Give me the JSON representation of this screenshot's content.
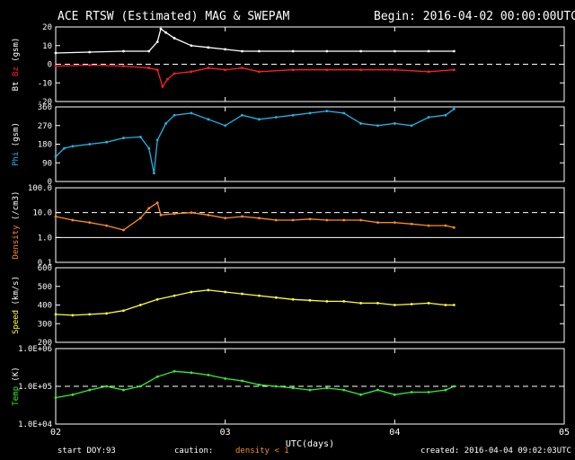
{
  "header": {
    "title": "ACE RTSW (Estimated) MAG & SWEPAM",
    "begin": "Begin: 2016-04-02 00:00:00UTC"
  },
  "footer": {
    "start_doy_label": "start DOY:",
    "start_doy_value": "93",
    "caution_label": "caution:",
    "caution_value": "density < 1",
    "created": "created: 2016-04-04 09:02:03UTC"
  },
  "colors": {
    "bt": "#ffffff",
    "bz": "#ff2020",
    "phi": "#22b4e6",
    "density": "#ff8c1a",
    "speed": "#ffff33",
    "temp": "#33ee33",
    "axis": "#ffffff",
    "background": "#000000"
  },
  "chart_data": {
    "type": "scatter",
    "xlabel": "UTC(days)",
    "xticks": [
      "02",
      "03",
      "04",
      "05"
    ],
    "xlim": [
      2,
      5
    ],
    "panels": [
      {
        "id": "mag",
        "ylabel_parts": [
          "Bt",
          "Bz",
          "(gsm)"
        ],
        "ylim": [
          -20,
          20
        ],
        "yticks": [
          "20",
          "10",
          "0",
          "-10",
          "-20"
        ],
        "ytick_values": [
          20,
          10,
          0,
          -10,
          -20
        ],
        "dashed_at": 0,
        "series": [
          {
            "name": "Bt",
            "color_key": "bt",
            "x": [
              2.0,
              2.2,
              2.4,
              2.55,
              2.6,
              2.62,
              2.65,
              2.7,
              2.8,
              2.9,
              3.0,
              3.1,
              3.2,
              3.4,
              3.6,
              3.8,
              4.0,
              4.2,
              4.35
            ],
            "y": [
              6,
              6.5,
              7,
              7,
              12,
              19,
              17,
              14,
              10,
              9,
              8,
              7,
              7,
              7,
              7,
              7,
              7,
              7,
              7
            ]
          },
          {
            "name": "Bz",
            "color_key": "bz",
            "x": [
              2.0,
              2.2,
              2.4,
              2.55,
              2.6,
              2.63,
              2.66,
              2.7,
              2.8,
              2.9,
              3.0,
              3.1,
              3.2,
              3.4,
              3.6,
              3.8,
              4.0,
              4.2,
              4.35
            ],
            "y": [
              -1,
              -0.5,
              -1,
              -2,
              -3,
              -12,
              -8,
              -5,
              -4,
              -2,
              -3,
              -2,
              -4,
              -3,
              -3,
              -3,
              -3,
              -4,
              -3
            ]
          }
        ]
      },
      {
        "id": "phi",
        "ylabel_parts": [
          "Phi",
          "(gsm)"
        ],
        "ylim": [
          0,
          360
        ],
        "yticks": [
          "360",
          "270",
          "180",
          "90",
          "0"
        ],
        "ytick_values": [
          360,
          270,
          180,
          90,
          0
        ],
        "series": [
          {
            "name": "Phi",
            "color_key": "phi",
            "x": [
              2.0,
              2.05,
              2.1,
              2.2,
              2.3,
              2.4,
              2.5,
              2.55,
              2.58,
              2.6,
              2.65,
              2.7,
              2.8,
              2.9,
              3.0,
              3.1,
              3.2,
              3.3,
              3.4,
              3.5,
              3.6,
              3.7,
              3.8,
              3.9,
              4.0,
              4.1,
              4.2,
              4.3,
              4.35
            ],
            "y": [
              120,
              160,
              170,
              180,
              190,
              210,
              215,
              160,
              40,
              200,
              280,
              320,
              330,
              300,
              270,
              320,
              300,
              310,
              320,
              330,
              340,
              330,
              280,
              270,
              280,
              270,
              310,
              320,
              350
            ]
          }
        ]
      },
      {
        "id": "density",
        "ylabel_parts": [
          "Density",
          "(/cm3)"
        ],
        "ylim": [
          0.1,
          100
        ],
        "log": true,
        "yticks": [
          "100.0",
          "10.0",
          "1.0",
          "0.1"
        ],
        "ytick_values": [
          100,
          10,
          1,
          0.1
        ],
        "dashed_at": 10,
        "solid_at": 1,
        "series": [
          {
            "name": "Density",
            "color_key": "density",
            "x": [
              2.0,
              2.1,
              2.2,
              2.3,
              2.4,
              2.5,
              2.55,
              2.6,
              2.62,
              2.7,
              2.8,
              2.9,
              3.0,
              3.1,
              3.2,
              3.3,
              3.4,
              3.5,
              3.6,
              3.7,
              3.8,
              3.9,
              4.0,
              4.1,
              4.2,
              4.3,
              4.35
            ],
            "y": [
              7,
              5,
              4,
              3,
              2,
              6,
              15,
              25,
              8,
              9,
              10,
              8,
              6,
              7,
              6,
              5,
              5,
              5.5,
              5,
              5,
              5,
              4,
              4,
              3.5,
              3,
              3,
              2.5
            ]
          }
        ]
      },
      {
        "id": "speed",
        "ylabel_parts": [
          "Speed",
          "(km/s)"
        ],
        "ylim": [
          200,
          600
        ],
        "yticks": [
          "600",
          "500",
          "400",
          "300",
          "200"
        ],
        "ytick_values": [
          600,
          500,
          400,
          300,
          200
        ],
        "series": [
          {
            "name": "Speed",
            "color_key": "speed",
            "x": [
              2.0,
              2.1,
              2.2,
              2.3,
              2.4,
              2.5,
              2.6,
              2.7,
              2.8,
              2.9,
              3.0,
              3.1,
              3.2,
              3.3,
              3.4,
              3.5,
              3.6,
              3.7,
              3.8,
              3.9,
              4.0,
              4.1,
              4.2,
              4.3,
              4.35
            ],
            "y": [
              350,
              345,
              350,
              355,
              370,
              400,
              430,
              450,
              470,
              480,
              470,
              460,
              450,
              440,
              430,
              425,
              420,
              420,
              410,
              410,
              400,
              405,
              410,
              400,
              400
            ]
          }
        ]
      },
      {
        "id": "temp",
        "ylabel_parts": [
          "Temp",
          "(K)"
        ],
        "ylim": [
          10000,
          1000000
        ],
        "log": true,
        "yticks": [
          "1.0E+06",
          "1.0E+05",
          "1.0E+04"
        ],
        "ytick_values": [
          1000000,
          100000,
          10000
        ],
        "dashed_at": 100000,
        "series": [
          {
            "name": "Temp",
            "color_key": "temp",
            "x": [
              2.0,
              2.1,
              2.2,
              2.3,
              2.4,
              2.5,
              2.6,
              2.7,
              2.8,
              2.9,
              3.0,
              3.1,
              3.2,
              3.3,
              3.4,
              3.5,
              3.6,
              3.7,
              3.8,
              3.9,
              4.0,
              4.1,
              4.2,
              4.3,
              4.35
            ],
            "y": [
              50000,
              60000,
              80000,
              100000,
              80000,
              100000,
              180000,
              250000,
              230000,
              200000,
              160000,
              140000,
              110000,
              100000,
              90000,
              80000,
              90000,
              80000,
              60000,
              80000,
              60000,
              70000,
              70000,
              80000,
              100000
            ]
          }
        ]
      }
    ]
  }
}
